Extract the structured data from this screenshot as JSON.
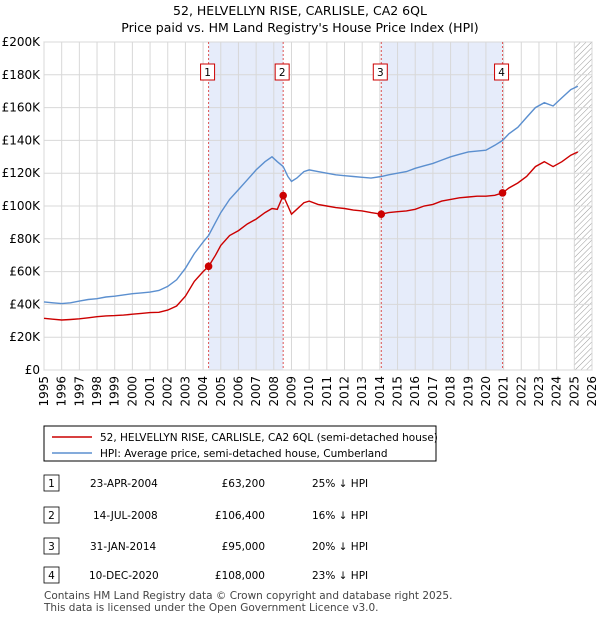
{
  "chart_data": {
    "type": "line",
    "title": "52, HELVELLYN RISE, CARLISLE, CA2 6QL",
    "subtitle": "Price paid vs. HM Land Registry's House Price Index (HPI)",
    "xlim": [
      1995,
      2026
    ],
    "ylim": [
      0,
      200000
    ],
    "x_ticks": [
      "1995",
      "1996",
      "1997",
      "1998",
      "1999",
      "2000",
      "2001",
      "2002",
      "2003",
      "2004",
      "2005",
      "2006",
      "2007",
      "2008",
      "2009",
      "2010",
      "2011",
      "2012",
      "2013",
      "2014",
      "2015",
      "2016",
      "2017",
      "2018",
      "2019",
      "2020",
      "2021",
      "2022",
      "2023",
      "2024",
      "2025",
      "2026"
    ],
    "y_ticks": [
      {
        "value": 0,
        "label": "£0"
      },
      {
        "value": 20000,
        "label": "£20K"
      },
      {
        "value": 40000,
        "label": "£40K"
      },
      {
        "value": 60000,
        "label": "£60K"
      },
      {
        "value": 80000,
        "label": "£80K"
      },
      {
        "value": 100000,
        "label": "£100K"
      },
      {
        "value": 120000,
        "label": "£120K"
      },
      {
        "value": 140000,
        "label": "£140K"
      },
      {
        "value": 160000,
        "label": "£160K"
      },
      {
        "value": 180000,
        "label": "£180K"
      },
      {
        "value": 200000,
        "label": "£200K"
      }
    ],
    "grid": true,
    "future_hatch_from": 2025.0,
    "series": [
      {
        "name": "52, HELVELLYN RISE, CARLISLE, CA2 6QL (semi-detached house)",
        "color": "#cc0000",
        "points": [
          [
            1995.0,
            31500
          ],
          [
            1995.5,
            31000
          ],
          [
            1996.0,
            30500
          ],
          [
            1996.5,
            30800
          ],
          [
            1997.0,
            31200
          ],
          [
            1997.5,
            31800
          ],
          [
            1998.0,
            32500
          ],
          [
            1998.5,
            33000
          ],
          [
            1999.0,
            33200
          ],
          [
            1999.5,
            33500
          ],
          [
            2000.0,
            34000
          ],
          [
            2000.5,
            34500
          ],
          [
            2001.0,
            35000
          ],
          [
            2001.5,
            35200
          ],
          [
            2002.0,
            36500
          ],
          [
            2002.5,
            39000
          ],
          [
            2003.0,
            45000
          ],
          [
            2003.5,
            54000
          ],
          [
            2004.0,
            60000
          ],
          [
            2004.31,
            63200
          ],
          [
            2004.7,
            70000
          ],
          [
            2005.0,
            76000
          ],
          [
            2005.5,
            82000
          ],
          [
            2006.0,
            85000
          ],
          [
            2006.5,
            89000
          ],
          [
            2007.0,
            92000
          ],
          [
            2007.5,
            96000
          ],
          [
            2007.9,
            98500
          ],
          [
            2008.2,
            98000
          ],
          [
            2008.53,
            106400
          ],
          [
            2008.8,
            100000
          ],
          [
            2009.0,
            95000
          ],
          [
            2009.3,
            98000
          ],
          [
            2009.7,
            102000
          ],
          [
            2010.0,
            103000
          ],
          [
            2010.5,
            101000
          ],
          [
            2011.0,
            100000
          ],
          [
            2011.5,
            99000
          ],
          [
            2012.0,
            98500
          ],
          [
            2012.5,
            97500
          ],
          [
            2013.0,
            97000
          ],
          [
            2013.5,
            96000
          ],
          [
            2014.08,
            95000
          ],
          [
            2014.5,
            96000
          ],
          [
            2015.0,
            96500
          ],
          [
            2015.5,
            97000
          ],
          [
            2016.0,
            98000
          ],
          [
            2016.5,
            100000
          ],
          [
            2017.0,
            101000
          ],
          [
            2017.5,
            103000
          ],
          [
            2018.0,
            104000
          ],
          [
            2018.5,
            105000
          ],
          [
            2019.0,
            105500
          ],
          [
            2019.5,
            106000
          ],
          [
            2020.0,
            106000
          ],
          [
            2020.5,
            106500
          ],
          [
            2020.94,
            108000
          ],
          [
            2021.3,
            111000
          ],
          [
            2021.8,
            114000
          ],
          [
            2022.3,
            118000
          ],
          [
            2022.8,
            124000
          ],
          [
            2023.3,
            127000
          ],
          [
            2023.8,
            124000
          ],
          [
            2024.3,
            127000
          ],
          [
            2024.8,
            131000
          ],
          [
            2025.2,
            133000
          ]
        ]
      },
      {
        "name": "HPI: Average price, semi-detached house, Cumberland",
        "color": "#5b8fcf",
        "points": [
          [
            1995.0,
            41500
          ],
          [
            1995.5,
            41000
          ],
          [
            1996.0,
            40500
          ],
          [
            1996.5,
            41000
          ],
          [
            1997.0,
            42000
          ],
          [
            1997.5,
            43000
          ],
          [
            1998.0,
            43500
          ],
          [
            1998.5,
            44500
          ],
          [
            1999.0,
            45000
          ],
          [
            1999.5,
            45800
          ],
          [
            2000.0,
            46500
          ],
          [
            2000.5,
            47000
          ],
          [
            2001.0,
            47500
          ],
          [
            2001.5,
            48500
          ],
          [
            2002.0,
            51000
          ],
          [
            2002.5,
            55000
          ],
          [
            2003.0,
            62000
          ],
          [
            2003.5,
            71000
          ],
          [
            2004.0,
            78000
          ],
          [
            2004.31,
            82000
          ],
          [
            2004.7,
            90000
          ],
          [
            2005.0,
            96000
          ],
          [
            2005.5,
            104000
          ],
          [
            2006.0,
            110000
          ],
          [
            2006.5,
            116000
          ],
          [
            2007.0,
            122000
          ],
          [
            2007.5,
            127000
          ],
          [
            2007.9,
            130000
          ],
          [
            2008.2,
            127000
          ],
          [
            2008.53,
            124000
          ],
          [
            2008.8,
            118000
          ],
          [
            2009.0,
            115000
          ],
          [
            2009.3,
            117000
          ],
          [
            2009.7,
            121000
          ],
          [
            2010.0,
            122000
          ],
          [
            2010.5,
            121000
          ],
          [
            2011.0,
            120000
          ],
          [
            2011.5,
            119000
          ],
          [
            2012.0,
            118500
          ],
          [
            2012.5,
            118000
          ],
          [
            2013.0,
            117500
          ],
          [
            2013.5,
            117000
          ],
          [
            2014.08,
            118000
          ],
          [
            2014.5,
            119000
          ],
          [
            2015.0,
            120000
          ],
          [
            2015.5,
            121000
          ],
          [
            2016.0,
            123000
          ],
          [
            2016.5,
            124500
          ],
          [
            2017.0,
            126000
          ],
          [
            2017.5,
            128000
          ],
          [
            2018.0,
            130000
          ],
          [
            2018.5,
            131500
          ],
          [
            2019.0,
            133000
          ],
          [
            2019.5,
            133500
          ],
          [
            2020.0,
            134000
          ],
          [
            2020.5,
            137000
          ],
          [
            2020.94,
            140000
          ],
          [
            2021.3,
            144000
          ],
          [
            2021.8,
            148000
          ],
          [
            2022.3,
            154000
          ],
          [
            2022.8,
            160000
          ],
          [
            2023.3,
            163000
          ],
          [
            2023.8,
            161000
          ],
          [
            2024.3,
            166000
          ],
          [
            2024.8,
            171000
          ],
          [
            2025.2,
            173000
          ]
        ]
      }
    ],
    "sales": [
      {
        "label": "1",
        "x": 2004.31,
        "value": 63200
      },
      {
        "label": "2",
        "x": 2008.53,
        "value": 106400
      },
      {
        "label": "3",
        "x": 2014.08,
        "value": 95000
      },
      {
        "label": "4",
        "x": 2020.94,
        "value": 108000
      }
    ],
    "shaded_ranges": [
      [
        2004.31,
        2008.53
      ],
      [
        2014.08,
        2020.94
      ]
    ]
  },
  "legend": [
    {
      "label": "52, HELVELLYN RISE, CARLISLE, CA2 6QL (semi-detached house)",
      "color": "#cc0000"
    },
    {
      "label": "HPI: Average price, semi-detached house, Cumberland",
      "color": "#5b8fcf"
    }
  ],
  "table": [
    {
      "num": "1",
      "date": "23-APR-2004",
      "price": "£63,200",
      "hpi": "25% ↓ HPI"
    },
    {
      "num": "2",
      "date": "14-JUL-2008",
      "price": "£106,400",
      "hpi": "16% ↓ HPI"
    },
    {
      "num": "3",
      "date": "31-JAN-2014",
      "price": "£95,000",
      "hpi": "20% ↓ HPI"
    },
    {
      "num": "4",
      "date": "10-DEC-2020",
      "price": "£108,000",
      "hpi": "23% ↓ HPI"
    }
  ],
  "footer": [
    "Contains HM Land Registry data © Crown copyright and database right 2025.",
    "This data is licensed under the Open Government Licence v3.0."
  ]
}
